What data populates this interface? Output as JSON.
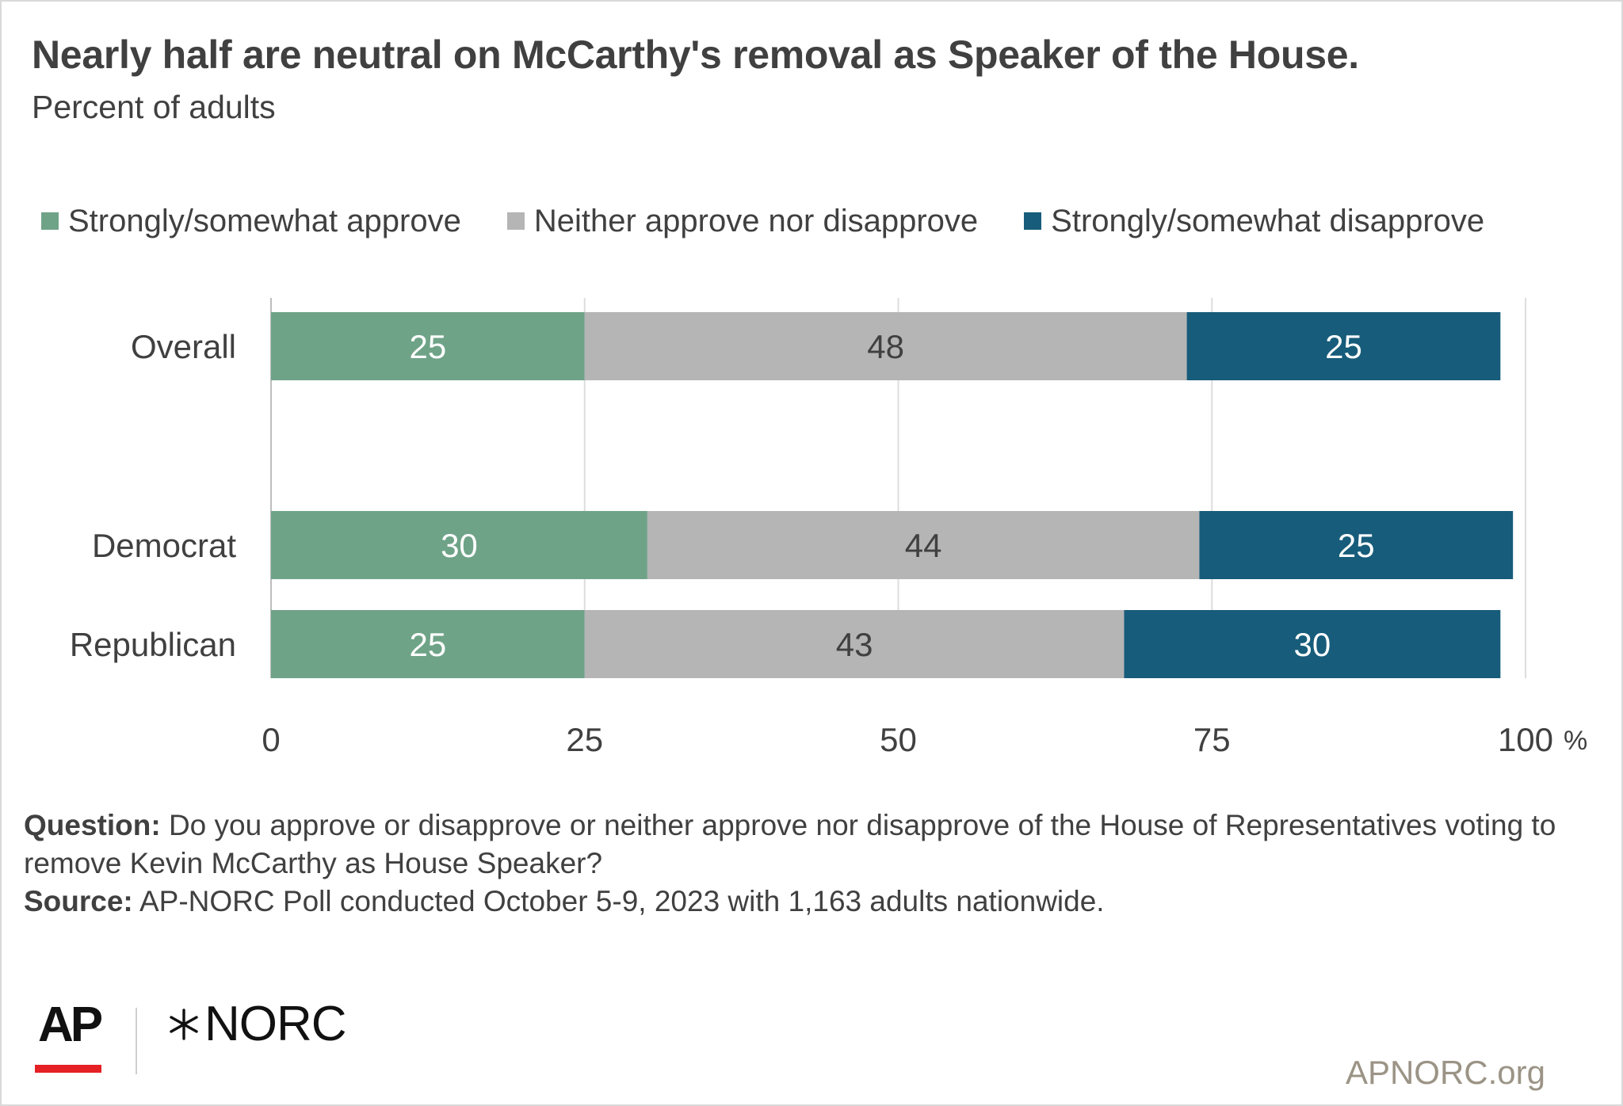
{
  "title": "Nearly half are neutral on McCarthy's removal as Speaker of the House.",
  "subtitle": "Percent of adults",
  "legend": [
    {
      "label": "Strongly/somewhat approve",
      "color": "#6fa388"
    },
    {
      "label": "Neither approve nor disapprove",
      "color": "#b5b5b5"
    },
    {
      "label": "Strongly/somewhat disapprove",
      "color": "#175c7a"
    }
  ],
  "chart_data": {
    "type": "bar",
    "orientation": "horizontal",
    "stacked": true,
    "categories": [
      "Overall",
      "Democrat",
      "Republican"
    ],
    "series": [
      {
        "name": "Strongly/somewhat approve",
        "values": [
          25,
          30,
          25
        ],
        "color": "#6fa388",
        "label_color": "#ffffff"
      },
      {
        "name": "Neither approve nor disapprove",
        "values": [
          48,
          44,
          43
        ],
        "color": "#b5b5b5",
        "label_color": "#404040"
      },
      {
        "name": "Strongly/somewhat disapprove",
        "values": [
          25,
          25,
          30
        ],
        "color": "#175c7a",
        "label_color": "#ffffff"
      }
    ],
    "xlim": [
      0,
      100
    ],
    "xticks": [
      0,
      25,
      50,
      75,
      100
    ],
    "xtick_labels": [
      "0",
      "25",
      "50",
      "75",
      "100"
    ],
    "x_unit": "%",
    "grid": true,
    "legend_position": "top"
  },
  "footnote": {
    "question_label": "Question:",
    "question_text": " Do you approve or disapprove or neither approve nor disapprove of the House of Representatives voting to remove Kevin McCarthy as House Speaker?",
    "source_label": "Source:",
    "source_text": " AP-NORC Poll conducted October 5-9, 2023 with 1,163 adults nationwide."
  },
  "branding": {
    "ap_logo": "AP",
    "norc_logo": "NORC",
    "site": "APNORC.org"
  }
}
